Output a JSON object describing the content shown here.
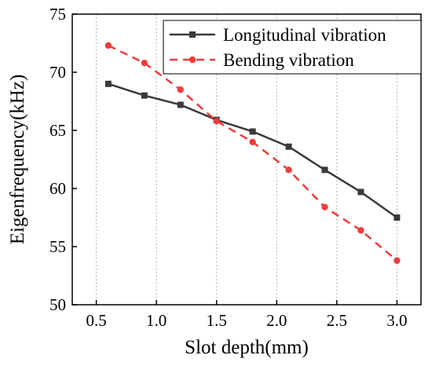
{
  "chart_data": {
    "type": "line",
    "title": "",
    "xlabel": "Slot depth(mm)",
    "ylabel": "Eigenfrequency(kHz)",
    "xlim": [
      0.3,
      3.2
    ],
    "ylim": [
      50,
      75
    ],
    "xticks": [
      0.5,
      1.0,
      1.5,
      2.0,
      2.5,
      3.0
    ],
    "xtick_labels": [
      "0.5",
      "1.0",
      "1.5",
      "2.0",
      "2.5",
      "3.0"
    ],
    "yticks": [
      50,
      55,
      60,
      65,
      70,
      75
    ],
    "ytick_labels": [
      "50",
      "55",
      "60",
      "65",
      "70",
      "75"
    ],
    "grid": "vertical dotted",
    "legend_position": "top-right",
    "series": [
      {
        "name": "Longitudinal vibration",
        "color": "#3a3a3a",
        "line_style": "solid",
        "marker": "square",
        "x": [
          0.6,
          0.9,
          1.2,
          1.5,
          1.8,
          2.1,
          2.4,
          2.7,
          3.0
        ],
        "y": [
          69.0,
          68.0,
          67.2,
          65.9,
          64.9,
          63.6,
          61.6,
          59.7,
          57.5
        ]
      },
      {
        "name": "Bending vibration",
        "color": "#f03c3c",
        "line_style": "dashed",
        "marker": "circle",
        "x": [
          0.6,
          0.9,
          1.2,
          1.5,
          1.8,
          2.1,
          2.4,
          2.7,
          3.0
        ],
        "y": [
          72.3,
          70.8,
          68.5,
          65.8,
          64.0,
          61.6,
          58.4,
          56.4,
          53.8
        ]
      }
    ]
  }
}
